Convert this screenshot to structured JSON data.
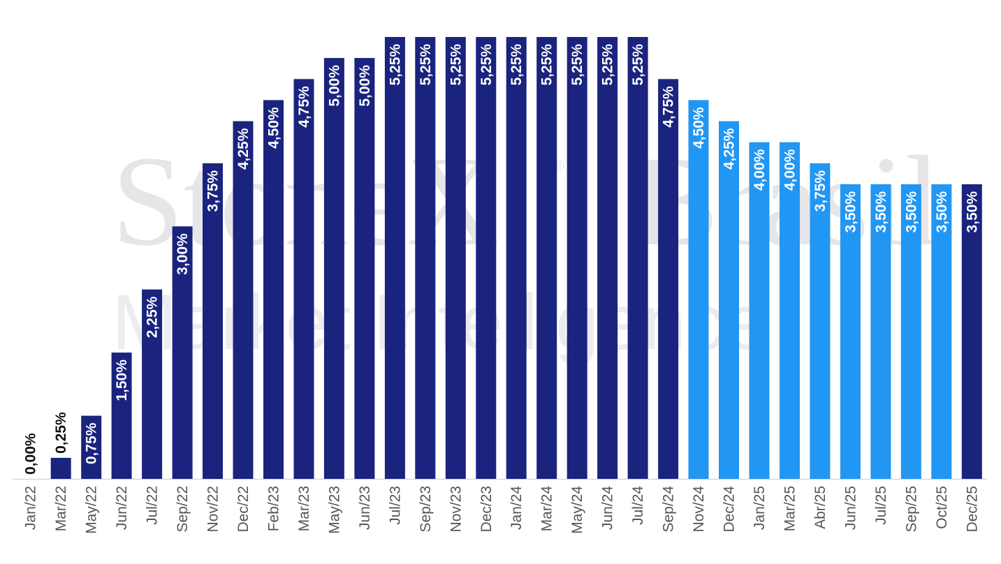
{
  "watermark": {
    "brand": "StoneX",
    "registered": "®",
    "suffix": "Brasil",
    "tagline": "Market Intelligence"
  },
  "colors": {
    "actual": "#1a237e",
    "projected": "#2196f3",
    "axis": "#cccccc",
    "label_inside": "#ffffff",
    "label_outside": "#111111"
  },
  "chart_data": {
    "type": "bar",
    "title": "",
    "xlabel": "",
    "ylabel": "",
    "ylim": [
      0,
      5.25
    ],
    "grid": false,
    "legend": "none",
    "categories": [
      "Jan/22",
      "Mar/22",
      "May/22",
      "Jun/22",
      "Jul/22",
      "Sep/22",
      "Nov/22",
      "Dec/22",
      "Feb/23",
      "Mar/23",
      "May/23",
      "Jun/23",
      "Jul/23",
      "Sep/23",
      "Nov/23",
      "Dec/23",
      "Jan/24",
      "Mar/24",
      "May/24",
      "Jun/24",
      "Jul/24",
      "Sep/24",
      "Nov/24",
      "Dec/24",
      "Jan/25",
      "Mar/25",
      "Abr/25",
      "Jun/25",
      "Jul/25",
      "Sep/25",
      "Oct/25",
      "Dec/25"
    ],
    "values": [
      0.0,
      0.25,
      0.75,
      1.5,
      2.25,
      3.0,
      3.75,
      4.25,
      4.5,
      4.75,
      5.0,
      5.0,
      5.25,
      5.25,
      5.25,
      5.25,
      5.25,
      5.25,
      5.25,
      5.25,
      5.25,
      4.75,
      4.5,
      4.25,
      4.0,
      4.0,
      3.75,
      3.5,
      3.5,
      3.5,
      3.5,
      3.5
    ],
    "labels": [
      "0,00%",
      "0,25%",
      "0,75%",
      "1,50%",
      "2,25%",
      "3,00%",
      "3,75%",
      "4,25%",
      "4,50%",
      "4,75%",
      "5,00%",
      "5,00%",
      "5,25%",
      "5,25%",
      "5,25%",
      "5,25%",
      "5,25%",
      "5,25%",
      "5,25%",
      "5,25%",
      "5,25%",
      "4,75%",
      "4,50%",
      "4,25%",
      "4,00%",
      "4,00%",
      "3,75%",
      "3,50%",
      "3,50%",
      "3,50%",
      "3,50%",
      "3,50%"
    ],
    "status": [
      "actual",
      "actual",
      "actual",
      "actual",
      "actual",
      "actual",
      "actual",
      "actual",
      "actual",
      "actual",
      "actual",
      "actual",
      "actual",
      "actual",
      "actual",
      "actual",
      "actual",
      "actual",
      "actual",
      "actual",
      "actual",
      "actual",
      "projected",
      "projected",
      "projected",
      "projected",
      "projected",
      "projected",
      "projected",
      "projected",
      "projected",
      "actual"
    ]
  }
}
